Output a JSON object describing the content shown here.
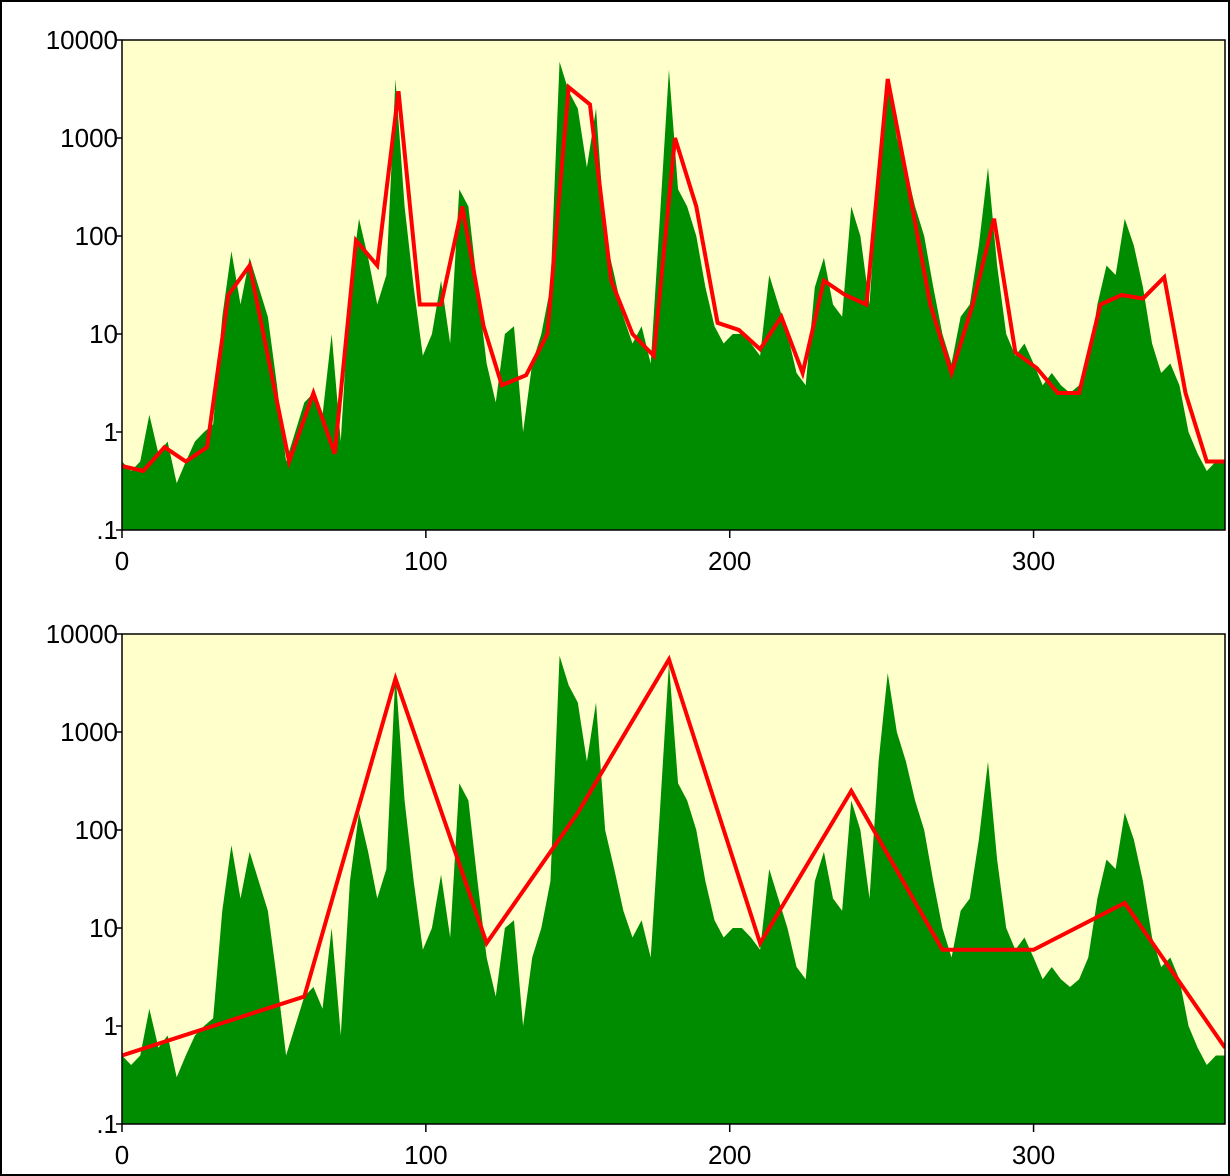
{
  "chart_data": [
    {
      "type": "area",
      "log_y": true,
      "xlim": [
        0,
        363
      ],
      "ylim": [
        0.1,
        10000
      ],
      "xticks": [
        0,
        100,
        200,
        300
      ],
      "yticks": [
        {
          "value": 0.1,
          "label": ".1"
        },
        1,
        10,
        100,
        1000,
        10000
      ],
      "background": "#ffffcc",
      "series": [
        {
          "type": "area",
          "color": "#008c00",
          "x": [
            0,
            3,
            6,
            9,
            12,
            15,
            18,
            21,
            24,
            27,
            30,
            33,
            36,
            39,
            42,
            45,
            48,
            51,
            54,
            57,
            60,
            63,
            66,
            69,
            72,
            75,
            78,
            81,
            84,
            87,
            90,
            93,
            96,
            99,
            102,
            105,
            108,
            111,
            114,
            117,
            120,
            123,
            126,
            129,
            132,
            135,
            138,
            141,
            144,
            147,
            150,
            153,
            156,
            159,
            162,
            165,
            168,
            171,
            174,
            177,
            180,
            183,
            186,
            189,
            192,
            195,
            198,
            201,
            204,
            207,
            210,
            213,
            216,
            219,
            222,
            225,
            228,
            231,
            234,
            237,
            240,
            243,
            246,
            249,
            252,
            255,
            258,
            261,
            264,
            267,
            270,
            273,
            276,
            279,
            282,
            285,
            288,
            291,
            294,
            297,
            300,
            303,
            306,
            309,
            312,
            315,
            318,
            321,
            324,
            327,
            330,
            333,
            336,
            339,
            342,
            345,
            348,
            351,
            354,
            357,
            360,
            363
          ],
          "values": [
            0.5,
            0.4,
            0.5,
            1.5,
            0.6,
            0.8,
            0.3,
            0.5,
            0.8,
            1,
            1.2,
            15,
            70,
            20,
            60,
            30,
            15,
            3,
            0.5,
            1,
            2,
            2.5,
            1.5,
            10,
            0.8,
            30,
            150,
            60,
            20,
            40,
            4000,
            200,
            30,
            6,
            10,
            35,
            8,
            300,
            200,
            30,
            5,
            2,
            10,
            12,
            1,
            5,
            10,
            30,
            6000,
            3000,
            2000,
            500,
            2000,
            100,
            40,
            15,
            8,
            12,
            5,
            150,
            5000,
            300,
            200,
            100,
            30,
            12,
            8,
            10,
            10,
            8,
            6,
            40,
            20,
            10,
            4,
            3,
            30,
            60,
            20,
            15,
            200,
            100,
            20,
            500,
            4000,
            1000,
            500,
            200,
            100,
            30,
            10,
            5,
            15,
            20,
            80,
            500,
            50,
            10,
            6,
            8,
            5,
            3,
            4,
            3,
            2.5,
            3,
            5,
            20,
            50,
            40,
            150,
            80,
            30,
            8,
            4,
            5,
            3,
            1,
            0.6,
            0.4,
            0.5,
            0.5
          ]
        },
        {
          "type": "line",
          "color": "#ff0000",
          "x": [
            0,
            7,
            14,
            21,
            28,
            35,
            42,
            55,
            63,
            70,
            77,
            84,
            91,
            98,
            105,
            112,
            119,
            125,
            133,
            140,
            147,
            154,
            161,
            168,
            175,
            182,
            189,
            196,
            203,
            210,
            217,
            224,
            231,
            238,
            245,
            252,
            259,
            266,
            273,
            280,
            287,
            294,
            301,
            308,
            315,
            322,
            329,
            336,
            343,
            350,
            357,
            364
          ],
          "values": [
            0.45,
            0.4,
            0.7,
            0.5,
            0.7,
            25,
            50,
            0.5,
            2.5,
            0.6,
            90,
            50,
            3000,
            20,
            20,
            200,
            12,
            3,
            3.8,
            10,
            3300,
            2200,
            35,
            10,
            6,
            1000,
            200,
            13,
            11,
            7,
            15,
            4,
            35,
            25,
            20,
            4000,
            300,
            20,
            4,
            20,
            150,
            6.5,
            4.5,
            2.5,
            2.5,
            20,
            25,
            23,
            38,
            2.5,
            0.5,
            0.5
          ]
        }
      ]
    },
    {
      "type": "area",
      "log_y": true,
      "xlim": [
        0,
        363
      ],
      "ylim": [
        0.1,
        10000
      ],
      "xticks": [
        0,
        100,
        200,
        300
      ],
      "yticks": [
        {
          "value": 0.1,
          "label": ".1"
        },
        1,
        10,
        100,
        1000,
        10000
      ],
      "background": "#ffffcc",
      "series": [
        {
          "type": "area",
          "color": "#008c00",
          "x": [
            0,
            3,
            6,
            9,
            12,
            15,
            18,
            21,
            24,
            27,
            30,
            33,
            36,
            39,
            42,
            45,
            48,
            51,
            54,
            57,
            60,
            63,
            66,
            69,
            72,
            75,
            78,
            81,
            84,
            87,
            90,
            93,
            96,
            99,
            102,
            105,
            108,
            111,
            114,
            117,
            120,
            123,
            126,
            129,
            132,
            135,
            138,
            141,
            144,
            147,
            150,
            153,
            156,
            159,
            162,
            165,
            168,
            171,
            174,
            177,
            180,
            183,
            186,
            189,
            192,
            195,
            198,
            201,
            204,
            207,
            210,
            213,
            216,
            219,
            222,
            225,
            228,
            231,
            234,
            237,
            240,
            243,
            246,
            249,
            252,
            255,
            258,
            261,
            264,
            267,
            270,
            273,
            276,
            279,
            282,
            285,
            288,
            291,
            294,
            297,
            300,
            303,
            306,
            309,
            312,
            315,
            318,
            321,
            324,
            327,
            330,
            333,
            336,
            339,
            342,
            345,
            348,
            351,
            354,
            357,
            360,
            363
          ],
          "values": [
            0.5,
            0.4,
            0.5,
            1.5,
            0.6,
            0.8,
            0.3,
            0.5,
            0.8,
            1,
            1.2,
            15,
            70,
            20,
            60,
            30,
            15,
            3,
            0.5,
            1,
            2,
            2.5,
            1.5,
            10,
            0.8,
            30,
            150,
            60,
            20,
            40,
            4000,
            200,
            30,
            6,
            10,
            35,
            8,
            300,
            200,
            30,
            5,
            2,
            10,
            12,
            1,
            5,
            10,
            30,
            6000,
            3000,
            2000,
            500,
            2000,
            100,
            40,
            15,
            8,
            12,
            5,
            150,
            5000,
            300,
            200,
            100,
            30,
            12,
            8,
            10,
            10,
            8,
            6,
            40,
            20,
            10,
            4,
            3,
            30,
            60,
            20,
            15,
            200,
            100,
            20,
            500,
            4000,
            1000,
            500,
            200,
            100,
            30,
            10,
            5,
            15,
            20,
            80,
            500,
            50,
            10,
            6,
            8,
            5,
            3,
            4,
            3,
            2.5,
            3,
            5,
            20,
            50,
            40,
            150,
            80,
            30,
            8,
            4,
            5,
            3,
            1,
            0.6,
            0.4,
            0.5,
            0.5
          ]
        },
        {
          "type": "line",
          "color": "#ff0000",
          "x": [
            0,
            60,
            90,
            120,
            150,
            180,
            210,
            240,
            270,
            300,
            330,
            363
          ],
          "values": [
            0.5,
            2,
            3500,
            7,
            150,
            5500,
            7,
            250,
            6,
            6,
            18,
            0.6
          ]
        }
      ]
    }
  ]
}
